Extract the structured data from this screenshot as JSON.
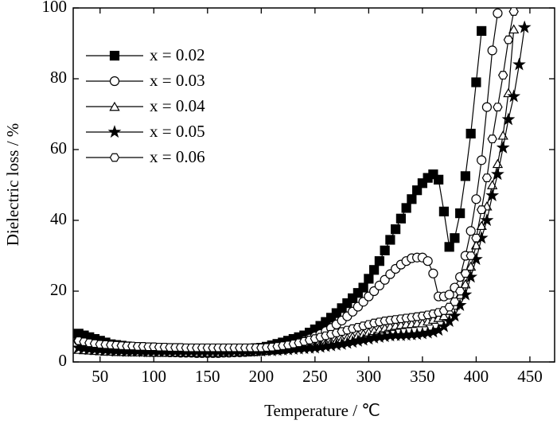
{
  "chart_data": {
    "type": "line",
    "xlabel": "Temperature / ℃",
    "ylabel": "Dielectric loss / %",
    "xlim": [
      25,
      473
    ],
    "ylim": [
      0,
      100
    ],
    "xticks": [
      50,
      100,
      150,
      200,
      250,
      300,
      350,
      400,
      450
    ],
    "yticks": [
      0,
      20,
      40,
      60,
      80,
      100
    ],
    "legend": "upper left",
    "x": [
      30,
      35,
      40,
      45,
      50,
      55,
      60,
      65,
      70,
      75,
      80,
      85,
      90,
      95,
      100,
      105,
      110,
      115,
      120,
      125,
      130,
      135,
      140,
      145,
      150,
      155,
      160,
      165,
      170,
      175,
      180,
      185,
      190,
      195,
      200,
      205,
      210,
      215,
      220,
      225,
      230,
      235,
      240,
      245,
      250,
      255,
      260,
      265,
      270,
      275,
      280,
      285,
      290,
      295,
      300,
      305,
      310,
      315,
      320,
      325,
      330,
      335,
      340,
      345,
      350,
      355,
      360,
      365,
      370,
      375,
      380,
      385,
      390,
      395,
      400,
      405,
      410,
      415,
      420,
      425,
      430,
      435,
      440,
      445
    ],
    "series": [
      {
        "name": "x = 0.02",
        "color": "#000000",
        "marker": "square",
        "values": [
          8,
          7.5,
          7,
          6.5,
          6,
          5.5,
          5,
          4.8,
          4.6,
          4.4,
          4.2,
          4,
          4,
          3.9,
          3.8,
          3.7,
          3.6,
          3.5,
          3.5,
          3.4,
          3.4,
          3.4,
          3.3,
          3.3,
          3.3,
          3.3,
          3.3,
          3.4,
          3.4,
          3.5,
          3.6,
          3.7,
          3.8,
          3.9,
          4,
          4.3,
          4.7,
          5.1,
          5.5,
          6,
          6.5,
          7,
          7.5,
          8.3,
          9.2,
          10.2,
          11.3,
          12.5,
          13.8,
          15.2,
          16.6,
          18,
          19.5,
          21,
          23.5,
          26,
          28.5,
          31.5,
          34.5,
          37.5,
          40.5,
          43.5,
          46,
          48.5,
          50.5,
          52,
          53,
          51.5,
          42.5,
          32.5,
          35,
          42,
          52.5,
          64.5,
          79,
          93.5,
          null,
          null,
          null,
          null,
          null,
          null,
          null,
          null
        ]
      },
      {
        "name": "x = 0.03",
        "color": "#000000",
        "marker": "circle",
        "values": [
          6,
          5.5,
          5,
          4.6,
          4.2,
          3.9,
          3.7,
          3.5,
          3.3,
          3.2,
          3.1,
          3,
          3,
          2.9,
          2.9,
          2.8,
          2.8,
          2.7,
          2.7,
          2.6,
          2.6,
          2.6,
          2.5,
          2.5,
          2.5,
          2.5,
          2.5,
          2.6,
          2.6,
          2.7,
          2.7,
          2.8,
          2.9,
          3,
          3.1,
          3.3,
          3.5,
          3.8,
          4.1,
          4.5,
          5,
          5.5,
          6,
          6.6,
          7.2,
          7.9,
          8.7,
          9.6,
          10.6,
          11.7,
          12.9,
          14.2,
          15.6,
          17,
          18.5,
          20,
          21.6,
          23.2,
          24.8,
          26.3,
          27.5,
          28.5,
          29.3,
          29.5,
          29.5,
          28.5,
          25,
          18.5,
          18.5,
          19,
          21,
          24,
          30,
          37,
          46,
          57,
          72,
          88,
          98.5,
          null,
          null,
          null,
          null,
          null
        ]
      },
      {
        "name": "x = 0.04",
        "color": "#000000",
        "marker": "triangle",
        "values": [
          3.5,
          3.4,
          3.3,
          3.2,
          3.1,
          3,
          3,
          2.9,
          2.9,
          2.8,
          2.8,
          2.8,
          2.8,
          2.7,
          2.7,
          2.7,
          2.7,
          2.7,
          2.7,
          2.7,
          2.7,
          2.7,
          2.7,
          2.7,
          2.7,
          2.7,
          2.7,
          2.8,
          2.8,
          2.8,
          2.9,
          2.9,
          3,
          3,
          3.1,
          3.2,
          3.3,
          3.4,
          3.5,
          3.7,
          3.9,
          4.1,
          4.3,
          4.5,
          4.8,
          5.1,
          5.4,
          5.7,
          6,
          6.4,
          6.8,
          7.2,
          7.6,
          8,
          8.4,
          8.8,
          9.2,
          9.6,
          10,
          10.3,
          10.5,
          10.7,
          10.8,
          11,
          11,
          11.5,
          12,
          12.5,
          13,
          14.5,
          16,
          19,
          22,
          27,
          33,
          38.5,
          44,
          50,
          56,
          64,
          76,
          94,
          null,
          null
        ]
      },
      {
        "name": "x = 0.05",
        "color": "#000000",
        "marker": "star",
        "values": [
          4,
          3.8,
          3.6,
          3.5,
          3.4,
          3.3,
          3.2,
          3.1,
          3.1,
          3,
          3,
          3,
          2.9,
          2.9,
          2.9,
          2.9,
          2.9,
          2.9,
          2.9,
          2.9,
          2.9,
          2.9,
          2.9,
          2.9,
          2.9,
          2.9,
          2.9,
          2.9,
          2.9,
          3,
          3,
          3,
          3,
          3.1,
          3.1,
          3.2,
          3.2,
          3.3,
          3.4,
          3.5,
          3.6,
          3.7,
          3.8,
          3.9,
          4,
          4.2,
          4.4,
          4.6,
          4.8,
          5,
          5.3,
          5.6,
          5.9,
          6.2,
          6.5,
          6.8,
          7,
          7.2,
          7.4,
          7.5,
          7.5,
          7.6,
          7.7,
          7.8,
          8,
          8.2,
          8.5,
          9,
          10,
          11.5,
          13,
          16,
          19,
          24,
          29,
          35,
          40,
          47,
          53,
          60.5,
          68.5,
          75,
          84,
          94.5
        ]
      },
      {
        "name": "x = 0.06",
        "color": "#000000",
        "marker": "hexagon",
        "values": [
          6,
          5.7,
          5.4,
          5.2,
          5,
          4.9,
          4.8,
          4.7,
          4.6,
          4.5,
          4.5,
          4.4,
          4.4,
          4.3,
          4.3,
          4.2,
          4.2,
          4.1,
          4.1,
          4.1,
          4,
          4,
          4,
          4,
          4,
          4,
          4,
          4,
          4,
          4,
          4,
          4,
          4,
          4,
          4,
          4.1,
          4.2,
          4.4,
          4.6,
          4.8,
          5.1,
          5.4,
          5.8,
          6.2,
          6.6,
          7,
          7.4,
          7.8,
          8.2,
          8.6,
          9,
          9.4,
          9.8,
          10.2,
          10.6,
          11,
          11.3,
          11.6,
          11.8,
          12,
          12.2,
          12.4,
          12.6,
          12.8,
          13,
          13.3,
          13.6,
          14,
          14.5,
          15.5,
          17,
          20,
          25,
          30,
          35,
          43,
          52,
          63,
          72,
          81,
          91,
          99,
          null,
          null
        ]
      }
    ]
  }
}
